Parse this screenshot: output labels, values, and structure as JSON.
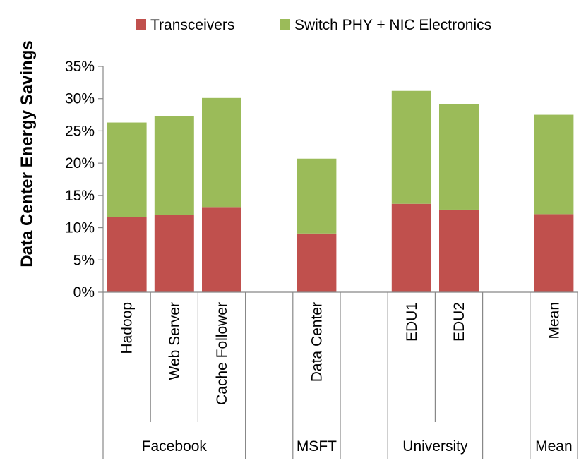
{
  "chart_data": {
    "type": "bar",
    "stacked": true,
    "title": "",
    "xlabel": "",
    "ylabel": "Data Center Energy Savings",
    "ylim": [
      0,
      35
    ],
    "yticks": [
      0,
      5,
      10,
      15,
      20,
      25,
      30,
      35
    ],
    "ytick_suffix": "%",
    "grid": false,
    "legend_position": "top",
    "slots": [
      {
        "label": "Hadoop",
        "bar": true
      },
      {
        "label": "Web Server",
        "bar": true
      },
      {
        "label": "Cache Follower",
        "bar": true
      },
      {
        "label": "",
        "bar": false
      },
      {
        "label": "Data Center",
        "bar": true
      },
      {
        "label": "",
        "bar": false
      },
      {
        "label": "EDU1",
        "bar": true
      },
      {
        "label": "EDU2",
        "bar": true
      },
      {
        "label": "",
        "bar": false
      },
      {
        "label": "Mean",
        "bar": true
      }
    ],
    "categories": [
      "Hadoop",
      "Web Server",
      "Cache Follower",
      "Data Center",
      "EDU1",
      "EDU2",
      "Mean"
    ],
    "groups": [
      {
        "label": "Facebook",
        "start": 0,
        "end": 3
      },
      {
        "label": "MSFT",
        "start": 4,
        "end": 5
      },
      {
        "label": "University",
        "start": 6,
        "end": 8
      },
      {
        "label": "Mean",
        "start": 9,
        "end": 10
      }
    ],
    "series": [
      {
        "name": "Transceivers",
        "color": "#c0504d",
        "values": [
          11.6,
          12.0,
          13.2,
          9.1,
          13.7,
          12.8,
          12.1
        ]
      },
      {
        "name": "Switch PHY + NIC Electronics",
        "color": "#9bbb59",
        "values": [
          14.7,
          15.3,
          16.9,
          11.6,
          17.5,
          16.4,
          15.4
        ]
      }
    ]
  }
}
